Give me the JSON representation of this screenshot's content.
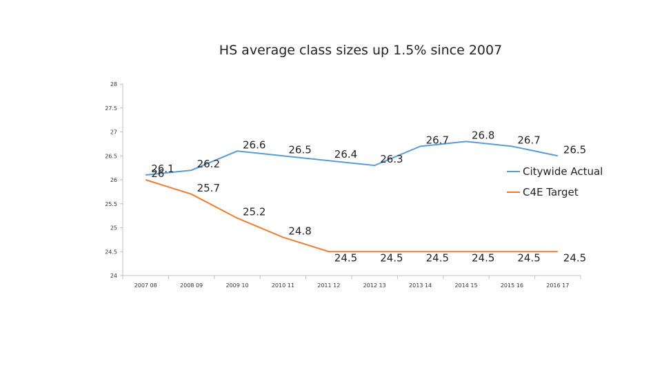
{
  "chart_data": {
    "type": "line",
    "title": "HS average class sizes up 1.5% since 2007",
    "xlabel": "",
    "ylabel": "",
    "categories": [
      "2007 08",
      "2008 09",
      "2009 10",
      "2010 11",
      "2011 12",
      "2012 13",
      "2013 14",
      "2014 15",
      "2015 16",
      "2016 17"
    ],
    "ylim": [
      24,
      28
    ],
    "yticks": [
      "24",
      "24.5",
      "25",
      "25.5",
      "26",
      "26.5",
      "27",
      "27.5",
      "28"
    ],
    "legend_position": "right",
    "series": [
      {
        "name": "Citywide Actual",
        "color": "#5b9bd5",
        "values": [
          26.1,
          26.2,
          26.6,
          26.5,
          26.4,
          26.3,
          26.7,
          26.8,
          26.7,
          26.5
        ],
        "labels": [
          "26.1",
          "26.2",
          "26.6",
          "26.5",
          "26.4",
          "26.3",
          "26.7",
          "26.8",
          "26.7",
          "26.5"
        ]
      },
      {
        "name": "C4E Target",
        "color": "#ed7d31",
        "values": [
          26,
          25.7,
          25.2,
          24.8,
          24.5,
          24.5,
          24.5,
          24.5,
          24.5,
          24.5
        ],
        "labels": [
          "26",
          "25.7",
          "25.2",
          "24.8",
          "24.5",
          "24.5",
          "24.5",
          "24.5",
          "24.5",
          "24.5"
        ]
      }
    ]
  }
}
